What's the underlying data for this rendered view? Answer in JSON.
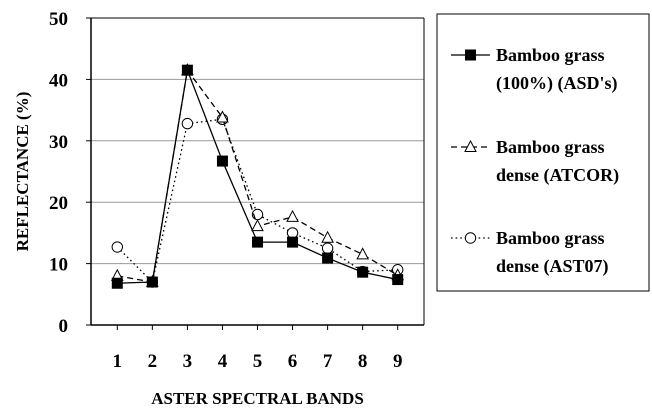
{
  "chart_data": {
    "type": "line",
    "title": "",
    "xlabel": "ASTER SPECTRAL BANDS",
    "ylabel": "REFLECTANCE (%)",
    "x": [
      1,
      2,
      3,
      4,
      5,
      6,
      7,
      8,
      9
    ],
    "x_tick_labels": [
      "1",
      "2",
      "3",
      "4",
      "5",
      "6",
      "7",
      "8",
      "9"
    ],
    "ylim": [
      0,
      50
    ],
    "y_ticks": [
      0,
      10,
      20,
      30,
      40,
      50
    ],
    "y_tick_labels": [
      "0",
      "10",
      "20",
      "30",
      "40",
      "50"
    ],
    "grid": "horizontal",
    "legend_position": "right",
    "series": [
      {
        "name_lines": [
          "Bamboo grass",
          "(100%) (ASD's)"
        ],
        "marker": "filled-square",
        "line_style": "solid",
        "color": "#000000",
        "values": [
          6.8,
          7.0,
          41.5,
          26.7,
          13.5,
          13.5,
          10.9,
          8.6,
          7.4
        ]
      },
      {
        "name_lines": [
          "Bamboo grass",
          "dense (ATCOR)"
        ],
        "marker": "open-triangle",
        "line_style": "dashed",
        "color": "#000000",
        "values": [
          8.0,
          7.0,
          41.5,
          33.8,
          16.1,
          17.6,
          14.2,
          11.5,
          8.1
        ]
      },
      {
        "name_lines": [
          "Bamboo grass",
          "dense (AST07)"
        ],
        "marker": "open-circle",
        "line_style": "dotted",
        "color": "#000000",
        "values": [
          12.7,
          7.0,
          32.8,
          33.5,
          18.0,
          15.0,
          12.5,
          8.7,
          9.0
        ]
      }
    ]
  }
}
